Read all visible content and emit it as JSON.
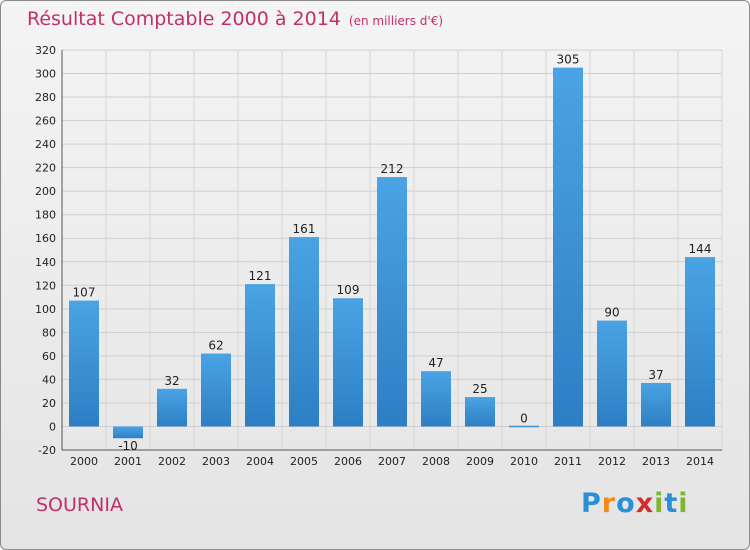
{
  "header": {
    "title": "Résultat Comptable 2000 à 2014",
    "unit_note": "(en milliers d'€)"
  },
  "footer": {
    "place": "SOURNIA",
    "brand_letters": [
      "P",
      "r",
      "o",
      "x",
      "i",
      "t",
      "i"
    ],
    "brand_colors": [
      "#2a8fd6",
      "#f08a1c",
      "#2a8fd6",
      "#d62b2b",
      "#7cb82f",
      "#2a8fd6",
      "#7cb82f"
    ]
  },
  "chart_data": {
    "type": "bar",
    "categories": [
      "2000",
      "2001",
      "2002",
      "2003",
      "2004",
      "2005",
      "2006",
      "2007",
      "2008",
      "2009",
      "2010",
      "2011",
      "2012",
      "2013",
      "2014"
    ],
    "values": [
      107,
      -10,
      32,
      62,
      121,
      161,
      109,
      212,
      47,
      25,
      0,
      305,
      90,
      37,
      144
    ],
    "ylim": [
      -20,
      320
    ],
    "yticks": [
      -20,
      0,
      20,
      40,
      60,
      80,
      100,
      120,
      140,
      160,
      180,
      200,
      220,
      240,
      260,
      280,
      300,
      320
    ],
    "grid": true,
    "bar_color": "#4aa3e4",
    "bar_color_dark": "#2d7fc4"
  }
}
